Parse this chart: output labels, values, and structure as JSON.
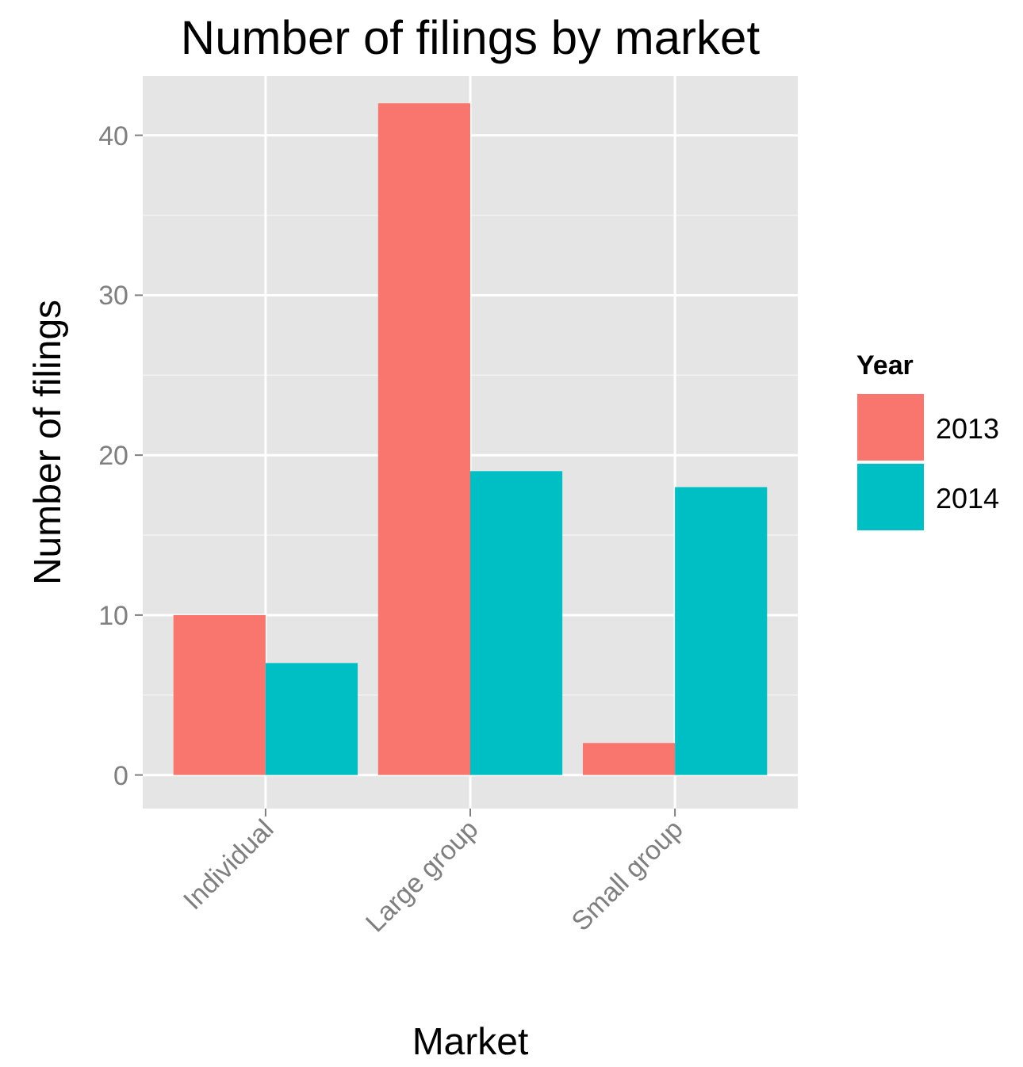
{
  "chart_data": {
    "type": "bar",
    "title": "Number of filings by market",
    "xlabel": "Market",
    "ylabel": "Number of filings",
    "legend_title": "Year",
    "categories": [
      "Individual",
      "Large group",
      "Small group"
    ],
    "series": [
      {
        "name": "2013",
        "color": "#f8766d",
        "values": [
          10,
          42,
          2
        ]
      },
      {
        "name": "2014",
        "color": "#00bfc4",
        "values": [
          7,
          19,
          18
        ]
      }
    ],
    "ylim": [
      -2.1,
      43.7
    ],
    "yticks": [
      0,
      10,
      20,
      30,
      40
    ],
    "grid": true,
    "legend": "right"
  }
}
